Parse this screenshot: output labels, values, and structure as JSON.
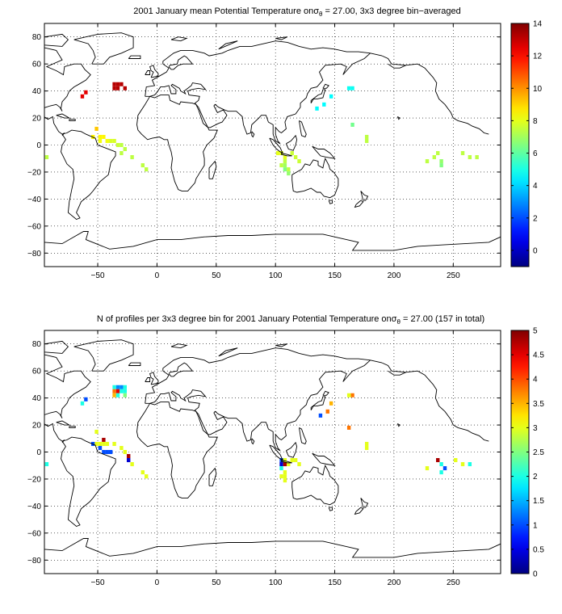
{
  "chart_data": [
    {
      "type": "heatmap",
      "title": "2001 January mean Potential Temperature on σθ = 27.00, 3x3 degree bin−averaged",
      "title_parts": [
        "2001 January mean Potential Temperature on",
        "σ",
        "θ",
        " = 27.00, 3x3 degree bin−averaged"
      ],
      "xlim": [
        -95,
        290
      ],
      "ylim": [
        -90,
        90
      ],
      "xticks": [
        -50,
        0,
        50,
        100,
        150,
        200,
        250
      ],
      "yticks": [
        -80,
        -60,
        -40,
        -20,
        0,
        20,
        40,
        60,
        80
      ],
      "grid": true,
      "colorbar": {
        "range": [
          -1,
          14
        ],
        "ticks": [
          0,
          2,
          4,
          6,
          8,
          10,
          12,
          14
        ]
      },
      "bin_size_deg": 3,
      "cells": [
        {
          "lon": -36,
          "lat": 45,
          "v": 13.2
        },
        {
          "lon": -33,
          "lat": 45,
          "v": 13.2
        },
        {
          "lon": -30,
          "lat": 45,
          "v": 13.2
        },
        {
          "lon": -36,
          "lat": 42,
          "v": 13.2
        },
        {
          "lon": -33,
          "lat": 42,
          "v": 13.2
        },
        {
          "lon": -27,
          "lat": 42,
          "v": 13.2
        },
        {
          "lon": -60,
          "lat": 39,
          "v": 12.5
        },
        {
          "lon": -63,
          "lat": 36,
          "v": 12.5
        },
        {
          "lon": 165,
          "lat": 42,
          "v": 4.8
        },
        {
          "lon": 162,
          "lat": 42,
          "v": 4.8
        },
        {
          "lon": 147,
          "lat": 36,
          "v": 4.6
        },
        {
          "lon": 141,
          "lat": 30,
          "v": 4.6
        },
        {
          "lon": 135,
          "lat": 27,
          "v": 4.6
        },
        {
          "lon": 165,
          "lat": 15,
          "v": 6.3
        },
        {
          "lon": 177,
          "lat": 6,
          "v": 7.4
        },
        {
          "lon": 177,
          "lat": 3,
          "v": 7.4
        },
        {
          "lon": -51,
          "lat": 12,
          "v": 9.2
        },
        {
          "lon": -54,
          "lat": 6,
          "v": 8.5
        },
        {
          "lon": -48,
          "lat": 6,
          "v": 8.5
        },
        {
          "lon": -45,
          "lat": 6,
          "v": 8.5
        },
        {
          "lon": -42,
          "lat": 3,
          "v": 8.2
        },
        {
          "lon": -48,
          "lat": 3,
          "v": 8.2
        },
        {
          "lon": -39,
          "lat": 3,
          "v": 7.8
        },
        {
          "lon": -36,
          "lat": 3,
          "v": 7.8
        },
        {
          "lon": -33,
          "lat": 0,
          "v": 7.6
        },
        {
          "lon": -30,
          "lat": 0,
          "v": 7.4
        },
        {
          "lon": -27,
          "lat": -3,
          "v": 7.4
        },
        {
          "lon": -30,
          "lat": -6,
          "v": 7.4
        },
        {
          "lon": -21,
          "lat": -9,
          "v": 7.4
        },
        {
          "lon": -12,
          "lat": -15,
          "v": 7.4
        },
        {
          "lon": -9,
          "lat": -18,
          "v": 7.4
        },
        {
          "lon": -93,
          "lat": -9,
          "v": 7.4
        },
        {
          "lon": 105,
          "lat": -6,
          "v": 8.0
        },
        {
          "lon": 102,
          "lat": -6,
          "v": 8.0
        },
        {
          "lon": 108,
          "lat": -9,
          "v": 8.0
        },
        {
          "lon": 114,
          "lat": -6,
          "v": 7.6
        },
        {
          "lon": 117,
          "lat": -9,
          "v": 7.6
        },
        {
          "lon": 120,
          "lat": -12,
          "v": 7.6
        },
        {
          "lon": 108,
          "lat": -12,
          "v": 7.4
        },
        {
          "lon": 105,
          "lat": -15,
          "v": 7.4
        },
        {
          "lon": 108,
          "lat": -15,
          "v": 7.0
        },
        {
          "lon": 108,
          "lat": -18,
          "v": 6.5
        },
        {
          "lon": 111,
          "lat": -18,
          "v": 7.4
        },
        {
          "lon": 111,
          "lat": -21,
          "v": 6.8
        },
        {
          "lon": 228,
          "lat": -12,
          "v": 7.4
        },
        {
          "lon": 234,
          "lat": -9,
          "v": 7.4
        },
        {
          "lon": 237,
          "lat": -6,
          "v": 7.4
        },
        {
          "lon": 240,
          "lat": -12,
          "v": 6.8
        },
        {
          "lon": 240,
          "lat": -15,
          "v": 6.5
        },
        {
          "lon": 258,
          "lat": -6,
          "v": 7.4
        },
        {
          "lon": 264,
          "lat": -9,
          "v": 7.4
        },
        {
          "lon": 270,
          "lat": -9,
          "v": 7.4
        }
      ]
    },
    {
      "type": "heatmap",
      "title": "N of profiles per 3x3 degree bin for 2001 January Potential Temperature on σθ = 27.00 (157 in total)",
      "title_parts": [
        "N of profiles per 3x3 degree bin for 2001 January Potential Temperature on",
        "σ",
        "θ",
        " = 27.00 (157 in total)"
      ],
      "xlim": [
        -95,
        290
      ],
      "ylim": [
        -90,
        90
      ],
      "xticks": [
        -50,
        0,
        50,
        100,
        150,
        200,
        250
      ],
      "yticks": [
        -80,
        -60,
        -40,
        -20,
        0,
        20,
        40,
        60,
        80
      ],
      "grid": true,
      "colorbar": {
        "range": [
          0,
          5
        ],
        "ticks": [
          0,
          0.5,
          1,
          1.5,
          2,
          2.5,
          3,
          3.5,
          4,
          4.5,
          5
        ],
        "tick_labels": [
          "0",
          "0.5",
          "1",
          "1.5",
          "2",
          "2.5",
          "3",
          "3.5",
          "4",
          "4.5",
          "5"
        ]
      },
      "bin_size_deg": 3,
      "cells": [
        {
          "lon": -36,
          "lat": 48,
          "v": 2
        },
        {
          "lon": -33,
          "lat": 48,
          "v": 1.3
        },
        {
          "lon": -30,
          "lat": 48,
          "v": 1.3
        },
        {
          "lon": -27,
          "lat": 48,
          "v": 2
        },
        {
          "lon": -36,
          "lat": 45,
          "v": 3.8
        },
        {
          "lon": -33,
          "lat": 45,
          "v": 4.5
        },
        {
          "lon": -30,
          "lat": 45,
          "v": 2
        },
        {
          "lon": -27,
          "lat": 45,
          "v": 2
        },
        {
          "lon": -36,
          "lat": 42,
          "v": 3.5
        },
        {
          "lon": -33,
          "lat": 42,
          "v": 2
        },
        {
          "lon": -27,
          "lat": 42,
          "v": 2.5
        },
        {
          "lon": -63,
          "lat": 36,
          "v": 2
        },
        {
          "lon": -60,
          "lat": 39,
          "v": 1
        },
        {
          "lon": 165,
          "lat": 42,
          "v": 3.8
        },
        {
          "lon": 162,
          "lat": 42,
          "v": 3
        },
        {
          "lon": 147,
          "lat": 36,
          "v": 3.5
        },
        {
          "lon": 144,
          "lat": 30,
          "v": 3.8
        },
        {
          "lon": 138,
          "lat": 27,
          "v": 1
        },
        {
          "lon": 162,
          "lat": 18,
          "v": 3.8
        },
        {
          "lon": 177,
          "lat": 6,
          "v": 3
        },
        {
          "lon": 177,
          "lat": 3,
          "v": 3
        },
        {
          "lon": -51,
          "lat": 15,
          "v": 3
        },
        {
          "lon": -54,
          "lat": 6,
          "v": 1
        },
        {
          "lon": -51,
          "lat": 6,
          "v": 3
        },
        {
          "lon": -45,
          "lat": 9,
          "v": 4.8
        },
        {
          "lon": -48,
          "lat": 6,
          "v": 3
        },
        {
          "lon": -45,
          "lat": 6,
          "v": 3
        },
        {
          "lon": -42,
          "lat": 6,
          "v": 3
        },
        {
          "lon": -36,
          "lat": 6,
          "v": 3
        },
        {
          "lon": -48,
          "lat": 3,
          "v": 1
        },
        {
          "lon": -45,
          "lat": 0,
          "v": 1
        },
        {
          "lon": -42,
          "lat": 0,
          "v": 1
        },
        {
          "lon": -39,
          "lat": 0,
          "v": 1
        },
        {
          "lon": -30,
          "lat": 3,
          "v": 3
        },
        {
          "lon": -27,
          "lat": 0,
          "v": 3
        },
        {
          "lon": -24,
          "lat": -3,
          "v": 4.8
        },
        {
          "lon": -24,
          "lat": -6,
          "v": 0.4
        },
        {
          "lon": -21,
          "lat": -9,
          "v": 3
        },
        {
          "lon": -12,
          "lat": -15,
          "v": 3
        },
        {
          "lon": -9,
          "lat": -18,
          "v": 3
        },
        {
          "lon": -93,
          "lat": -9,
          "v": 2
        },
        {
          "lon": 105,
          "lat": -6,
          "v": 1
        },
        {
          "lon": 108,
          "lat": -6,
          "v": 3
        },
        {
          "lon": 105,
          "lat": -9,
          "v": 0.4
        },
        {
          "lon": 108,
          "lat": -9,
          "v": 4.8
        },
        {
          "lon": 105,
          "lat": -12,
          "v": 2
        },
        {
          "lon": 111,
          "lat": -9,
          "v": 3
        },
        {
          "lon": 114,
          "lat": -6,
          "v": 3
        },
        {
          "lon": 117,
          "lat": -6,
          "v": 3
        },
        {
          "lon": 120,
          "lat": -9,
          "v": 3
        },
        {
          "lon": 108,
          "lat": -15,
          "v": 3
        },
        {
          "lon": 105,
          "lat": -18,
          "v": 3
        },
        {
          "lon": 108,
          "lat": -18,
          "v": 3
        },
        {
          "lon": 108,
          "lat": -21,
          "v": 3
        },
        {
          "lon": 228,
          "lat": -12,
          "v": 3
        },
        {
          "lon": 237,
          "lat": -6,
          "v": 4.8
        },
        {
          "lon": 240,
          "lat": -9,
          "v": 2
        },
        {
          "lon": 243,
          "lat": -12,
          "v": 1
        },
        {
          "lon": 240,
          "lat": -15,
          "v": 2
        },
        {
          "lon": 252,
          "lat": -6,
          "v": 3
        },
        {
          "lon": 258,
          "lat": -9,
          "v": 3
        },
        {
          "lon": 264,
          "lat": -9,
          "v": 2
        }
      ]
    }
  ]
}
